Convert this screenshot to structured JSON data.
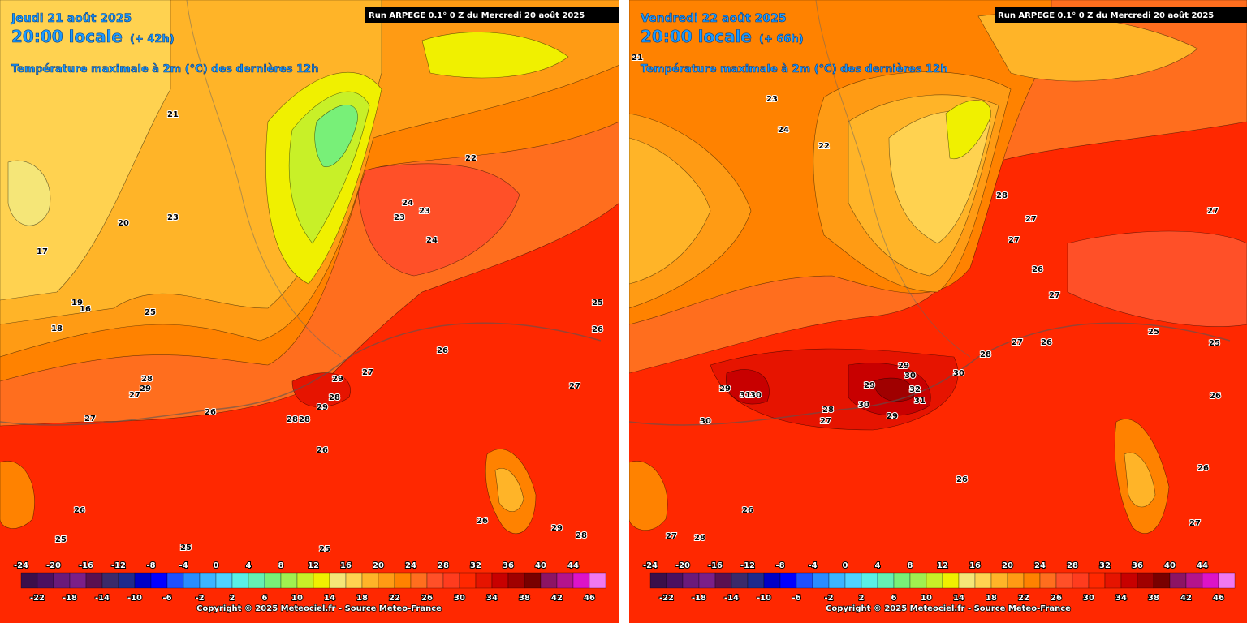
{
  "panels": [
    {
      "date": "Jeudi 21 août 2025",
      "time": "20:00 locale",
      "lead": "(+ 42h)",
      "run": "Run ARPEGE 0.1° 0 Z du Mercredi 20 août 2025",
      "parameter": "Température maximale à 2m (°C) des dernières 12h",
      "labels": [
        22,
        24,
        23,
        23,
        24,
        26,
        27,
        29,
        28,
        29,
        28,
        28,
        26,
        27,
        28,
        29,
        27,
        26,
        25,
        25,
        26,
        25,
        27,
        25,
        26,
        21,
        23,
        25,
        16,
        19,
        18,
        20,
        17,
        28,
        29,
        26
      ]
    },
    {
      "date": "Vendredi 22 août 2025",
      "time": "20:00 locale",
      "lead": "(+ 66h)",
      "run": "Run ARPEGE 0.1° 0 Z du Mercredi 20 août 2025",
      "parameter": "Température maximale à 2m (°C) des dernières 12h",
      "labels": [
        28,
        27,
        27,
        26,
        27,
        25,
        26,
        27,
        28,
        30,
        29,
        30,
        32,
        31,
        29,
        30,
        29,
        28,
        27,
        31,
        30,
        29,
        30,
        26,
        26,
        28,
        27,
        27,
        26,
        26,
        27,
        25,
        23,
        24,
        22,
        21
      ]
    }
  ],
  "colorbar": {
    "ticks": [
      -24,
      -22,
      -20,
      -18,
      -16,
      -14,
      -12,
      -10,
      -8,
      -6,
      -4,
      -2,
      0,
      2,
      4,
      6,
      8,
      10,
      12,
      14,
      16,
      18,
      20,
      22,
      24,
      26,
      28,
      30,
      32,
      34,
      36,
      38,
      40,
      42,
      44,
      46
    ],
    "colors": [
      "#3b0f4a",
      "#4b1060",
      "#6a1a7a",
      "#7b1f88",
      "#5a1050",
      "#3a2a6a",
      "#1f2a8c",
      "#0000c8",
      "#0000ff",
      "#1e50ff",
      "#2a8cff",
      "#3cb4ff",
      "#50d2ff",
      "#5af0e6",
      "#64f0b4",
      "#78f078",
      "#a0f050",
      "#c8f028",
      "#f0f000",
      "#f5e678",
      "#ffd250",
      "#ffb428",
      "#ff9b14",
      "#ff8200",
      "#ff6e1e",
      "#ff5028",
      "#ff3c1e",
      "#ff2800",
      "#e61400",
      "#c80000",
      "#a00000",
      "#780000",
      "#8c1464",
      "#b4148c",
      "#dc14c8",
      "#f078f0"
    ]
  },
  "copyright": "Copyright © 2025 Meteociel.fr - Source Meteo-France"
}
